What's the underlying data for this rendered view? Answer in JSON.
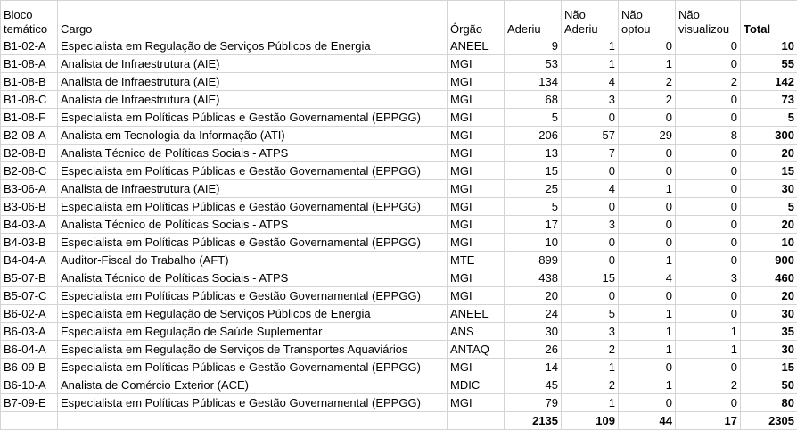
{
  "table": {
    "header": [
      [
        "Bloco",
        "temático"
      ],
      [
        "Cargo"
      ],
      [
        "Órgão"
      ],
      [
        "Aderiu"
      ],
      [
        "Não",
        "Aderiu"
      ],
      [
        "Não",
        "optou"
      ],
      [
        "Não",
        "visualizou"
      ],
      [
        "Total"
      ]
    ],
    "rows": [
      [
        "B1-02-A",
        "Especialista em Regulação de Serviços Públicos de Energia",
        "ANEEL",
        9,
        1,
        0,
        0,
        10
      ],
      [
        "B1-08-A",
        "Analista de Infraestrutura (AIE)",
        "MGI",
        53,
        1,
        1,
        0,
        55
      ],
      [
        "B1-08-B",
        "Analista de Infraestrutura (AIE)",
        "MGI",
        134,
        4,
        2,
        2,
        142
      ],
      [
        "B1-08-C",
        "Analista de Infraestrutura (AIE)",
        "MGI",
        68,
        3,
        2,
        0,
        73
      ],
      [
        "B1-08-F",
        "Especialista em Políticas Públicas e Gestão Governamental (EPPGG)",
        "MGI",
        5,
        0,
        0,
        0,
        5
      ],
      [
        "B2-08-A",
        "Analista em Tecnologia da Informação (ATI)",
        "MGI",
        206,
        57,
        29,
        8,
        300
      ],
      [
        "B2-08-B",
        "Analista Técnico de Políticas Sociais - ATPS",
        "MGI",
        13,
        7,
        0,
        0,
        20
      ],
      [
        "B2-08-C",
        "Especialista em Políticas Públicas e Gestão Governamental (EPPGG)",
        "MGI",
        15,
        0,
        0,
        0,
        15
      ],
      [
        "B3-06-A",
        "Analista de Infraestrutura (AIE)",
        "MGI",
        25,
        4,
        1,
        0,
        30
      ],
      [
        "B3-06-B",
        "Especialista em Políticas Públicas e Gestão Governamental (EPPGG)",
        "MGI",
        5,
        0,
        0,
        0,
        5
      ],
      [
        "B4-03-A",
        "Analista Técnico de Políticas Sociais - ATPS",
        "MGI",
        17,
        3,
        0,
        0,
        20
      ],
      [
        "B4-03-B",
        "Especialista em Políticas Públicas e Gestão Governamental (EPPGG)",
        "MGI",
        10,
        0,
        0,
        0,
        10
      ],
      [
        "B4-04-A",
        "Auditor-Fiscal do Trabalho (AFT)",
        "MTE",
        899,
        0,
        1,
        0,
        900
      ],
      [
        "B5-07-B",
        "Analista Técnico de Políticas Sociais - ATPS",
        "MGI",
        438,
        15,
        4,
        3,
        460
      ],
      [
        "B5-07-C",
        "Especialista em Políticas Públicas e Gestão Governamental (EPPGG)",
        "MGI",
        20,
        0,
        0,
        0,
        20
      ],
      [
        "B6-02-A",
        "Especialista em Regulação de Serviços Públicos de Energia",
        "ANEEL",
        24,
        5,
        1,
        0,
        30
      ],
      [
        "B6-03-A",
        "Especialista em Regulação de Saúde Suplementar",
        "ANS",
        30,
        3,
        1,
        1,
        35
      ],
      [
        "B6-04-A",
        "Especialista em Regulação de Serviços de Transportes Aquaviários",
        "ANTAQ",
        26,
        2,
        1,
        1,
        30
      ],
      [
        "B6-09-B",
        "Especialista em Políticas Públicas e Gestão Governamental (EPPGG)",
        "MGI",
        14,
        1,
        0,
        0,
        15
      ],
      [
        "B6-10-A",
        "Analista de Comércio Exterior (ACE)",
        "MDIC",
        45,
        2,
        1,
        2,
        50
      ],
      [
        "B7-09-E",
        "Especialista em Políticas Públicas e Gestão Governamental (EPPGG)",
        "MGI",
        79,
        1,
        0,
        0,
        80
      ]
    ],
    "totals": [
      2135,
      109,
      44,
      17,
      2305
    ]
  }
}
